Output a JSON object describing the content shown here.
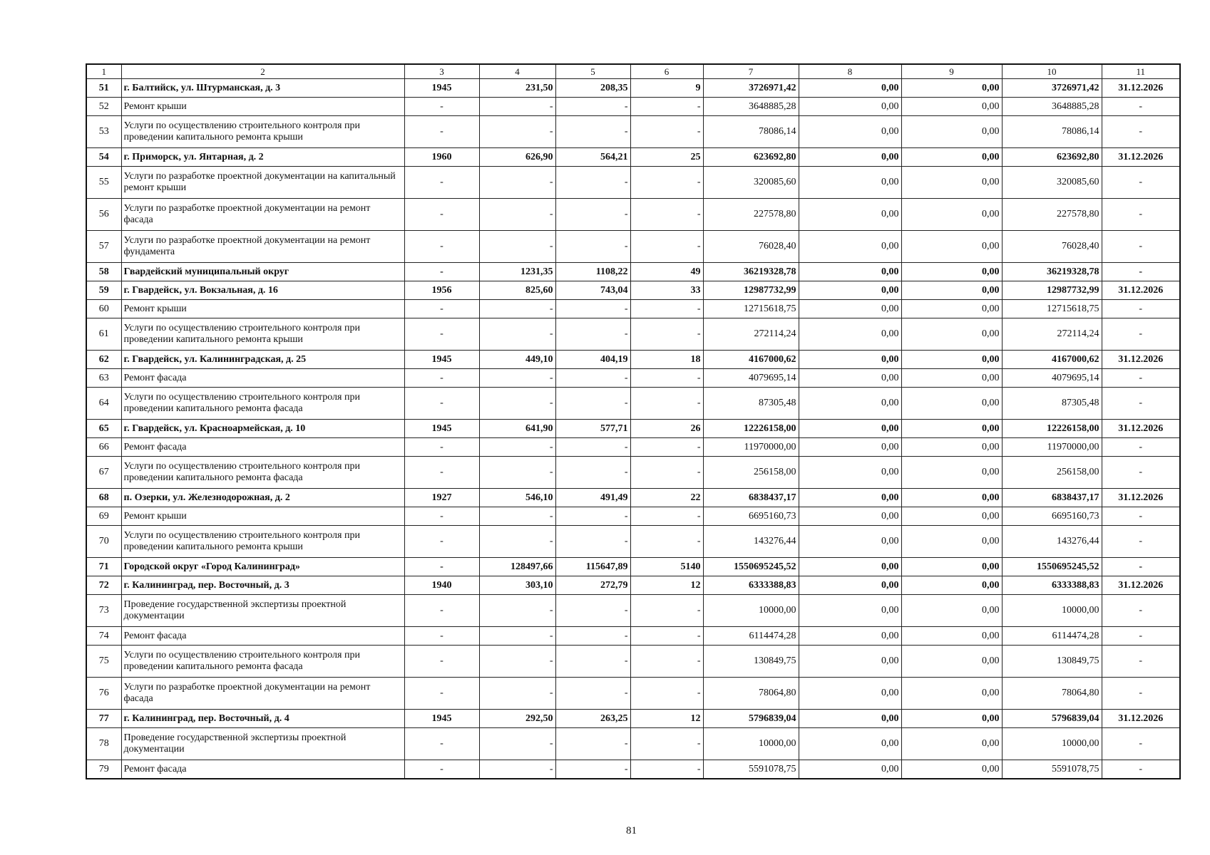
{
  "header": [
    "1",
    "2",
    "3",
    "4",
    "5",
    "6",
    "7",
    "8",
    "9",
    "10",
    "11"
  ],
  "rows": [
    {
      "bold": true,
      "cells": [
        "51",
        "г. Балтийск, ул. Штурманская, д. 3",
        "1945",
        "231,50",
        "208,35",
        "9",
        "3726971,42",
        "0,00",
        "0,00",
        "3726971,42",
        "31.12.2026"
      ]
    },
    {
      "bold": false,
      "cells": [
        "52",
        "Ремонт крыши",
        "-",
        "-",
        "-",
        "-",
        "3648885,28",
        "0,00",
        "0,00",
        "3648885,28",
        "-"
      ]
    },
    {
      "bold": false,
      "cells": [
        "53",
        "Услуги по осуществлению строительного контроля при проведении капитального ремонта крыши",
        "-",
        "-",
        "-",
        "-",
        "78086,14",
        "0,00",
        "0,00",
        "78086,14",
        "-"
      ]
    },
    {
      "bold": true,
      "cells": [
        "54",
        "г. Приморск, ул. Янтарная, д. 2",
        "1960",
        "626,90",
        "564,21",
        "25",
        "623692,80",
        "0,00",
        "0,00",
        "623692,80",
        "31.12.2026"
      ]
    },
    {
      "bold": false,
      "cells": [
        "55",
        "Услуги по разработке проектной документации на капитальный ремонт крыши",
        "-",
        "-",
        "-",
        "-",
        "320085,60",
        "0,00",
        "0,00",
        "320085,60",
        "-"
      ]
    },
    {
      "bold": false,
      "cells": [
        "56",
        "Услуги по разработке проектной документации на ремонт фасада",
        "-",
        "-",
        "-",
        "-",
        "227578,80",
        "0,00",
        "0,00",
        "227578,80",
        "-"
      ]
    },
    {
      "bold": false,
      "cells": [
        "57",
        "Услуги по разработке проектной документации на ремонт фундамента",
        "-",
        "-",
        "-",
        "-",
        "76028,40",
        "0,00",
        "0,00",
        "76028,40",
        "-"
      ]
    },
    {
      "bold": true,
      "cells": [
        "58",
        "Гвардейский муниципальный округ",
        "-",
        "1231,35",
        "1108,22",
        "49",
        "36219328,78",
        "0,00",
        "0,00",
        "36219328,78",
        "-"
      ]
    },
    {
      "bold": true,
      "cells": [
        "59",
        "г. Гвардейск, ул. Вокзальная, д. 16",
        "1956",
        "825,60",
        "743,04",
        "33",
        "12987732,99",
        "0,00",
        "0,00",
        "12987732,99",
        "31.12.2026"
      ]
    },
    {
      "bold": false,
      "cells": [
        "60",
        "Ремонт крыши",
        "-",
        "-",
        "-",
        "-",
        "12715618,75",
        "0,00",
        "0,00",
        "12715618,75",
        "-"
      ]
    },
    {
      "bold": false,
      "cells": [
        "61",
        "Услуги по осуществлению строительного контроля при проведении капитального ремонта крыши",
        "-",
        "-",
        "-",
        "-",
        "272114,24",
        "0,00",
        "0,00",
        "272114,24",
        "-"
      ]
    },
    {
      "bold": true,
      "cells": [
        "62",
        "г. Гвардейск, ул. Калининградская, д. 25",
        "1945",
        "449,10",
        "404,19",
        "18",
        "4167000,62",
        "0,00",
        "0,00",
        "4167000,62",
        "31.12.2026"
      ]
    },
    {
      "bold": false,
      "cells": [
        "63",
        "Ремонт фасада",
        "-",
        "-",
        "-",
        "-",
        "4079695,14",
        "0,00",
        "0,00",
        "4079695,14",
        "-"
      ]
    },
    {
      "bold": false,
      "cells": [
        "64",
        "Услуги по осуществлению строительного контроля при проведении капитального ремонта фасада",
        "-",
        "-",
        "-",
        "-",
        "87305,48",
        "0,00",
        "0,00",
        "87305,48",
        "-"
      ]
    },
    {
      "bold": true,
      "cells": [
        "65",
        "г. Гвардейск, ул. Красноармейская, д. 10",
        "1945",
        "641,90",
        "577,71",
        "26",
        "12226158,00",
        "0,00",
        "0,00",
        "12226158,00",
        "31.12.2026"
      ]
    },
    {
      "bold": false,
      "cells": [
        "66",
        "Ремонт фасада",
        "-",
        "-",
        "-",
        "-",
        "11970000,00",
        "0,00",
        "0,00",
        "11970000,00",
        "-"
      ]
    },
    {
      "bold": false,
      "cells": [
        "67",
        "Услуги по осуществлению строительного контроля при проведении капитального ремонта фасада",
        "-",
        "-",
        "-",
        "-",
        "256158,00",
        "0,00",
        "0,00",
        "256158,00",
        "-"
      ]
    },
    {
      "bold": true,
      "cells": [
        "68",
        "п. Озерки, ул. Железнодорожная, д. 2",
        "1927",
        "546,10",
        "491,49",
        "22",
        "6838437,17",
        "0,00",
        "0,00",
        "6838437,17",
        "31.12.2026"
      ]
    },
    {
      "bold": false,
      "cells": [
        "69",
        "Ремонт крыши",
        "-",
        "-",
        "-",
        "-",
        "6695160,73",
        "0,00",
        "0,00",
        "6695160,73",
        "-"
      ]
    },
    {
      "bold": false,
      "cells": [
        "70",
        "Услуги по осуществлению строительного контроля при проведении капитального ремонта крыши",
        "-",
        "-",
        "-",
        "-",
        "143276,44",
        "0,00",
        "0,00",
        "143276,44",
        "-"
      ]
    },
    {
      "bold": true,
      "cells": [
        "71",
        "Городской округ «Город Калининград»",
        "-",
        "128497,66",
        "115647,89",
        "5140",
        "1550695245,52",
        "0,00",
        "0,00",
        "1550695245,52",
        "-"
      ]
    },
    {
      "bold": true,
      "cells": [
        "72",
        "г. Калининград, пер. Восточный, д. 3",
        "1940",
        "303,10",
        "272,79",
        "12",
        "6333388,83",
        "0,00",
        "0,00",
        "6333388,83",
        "31.12.2026"
      ]
    },
    {
      "bold": false,
      "cells": [
        "73",
        "Проведение государственной экспертизы проектной документации",
        "-",
        "-",
        "-",
        "-",
        "10000,00",
        "0,00",
        "0,00",
        "10000,00",
        "-"
      ]
    },
    {
      "bold": false,
      "cells": [
        "74",
        "Ремонт фасада",
        "-",
        "-",
        "-",
        "-",
        "6114474,28",
        "0,00",
        "0,00",
        "6114474,28",
        "-"
      ]
    },
    {
      "bold": false,
      "cells": [
        "75",
        "Услуги по осуществлению строительного контроля при проведении капитального ремонта фасада",
        "-",
        "-",
        "-",
        "-",
        "130849,75",
        "0,00",
        "0,00",
        "130849,75",
        "-"
      ]
    },
    {
      "bold": false,
      "cells": [
        "76",
        "Услуги по разработке проектной документации на ремонт фасада",
        "-",
        "-",
        "-",
        "-",
        "78064,80",
        "0,00",
        "0,00",
        "78064,80",
        "-"
      ]
    },
    {
      "bold": true,
      "cells": [
        "77",
        "г. Калининград, пер. Восточный, д. 4",
        "1945",
        "292,50",
        "263,25",
        "12",
        "5796839,04",
        "0,00",
        "0,00",
        "5796839,04",
        "31.12.2026"
      ]
    },
    {
      "bold": false,
      "cells": [
        "78",
        "Проведение государственной экспертизы проектной документации",
        "-",
        "-",
        "-",
        "-",
        "10000,00",
        "0,00",
        "0,00",
        "10000,00",
        "-"
      ]
    },
    {
      "bold": false,
      "cells": [
        "79",
        "Ремонт фасада",
        "-",
        "-",
        "-",
        "-",
        "5591078,75",
        "0,00",
        "0,00",
        "5591078,75",
        "-"
      ]
    }
  ],
  "page_number": "81"
}
